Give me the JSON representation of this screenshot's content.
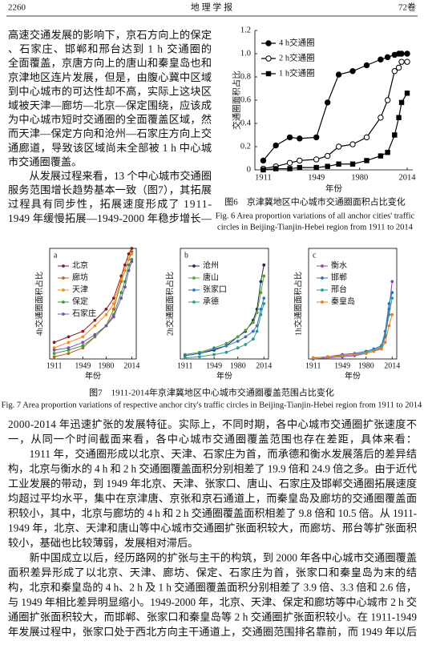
{
  "header": {
    "page": "2260",
    "journal": "地 理 学 报",
    "volume": "72卷"
  },
  "left_text": [
    "高速交通发展的影响下，京石方向上的保定",
    "、石家庄、邯郸和邢台达到 1 h 交通圈的",
    "全面覆盖，京唐方向上的唐山和秦皇岛也和",
    "京津地区连片发展，但是，由腹心冀中区域",
    "到中心城市的可达性却不高，实际上这块区",
    "域被天津—廊坊—北京—保定围绕，应该成",
    "为中心城市短时交通圈的全面覆盖区域，然",
    "而天津—保定方向和沧州—石家庄方向上交",
    "通廊道，导致该区域尚未全部被 1 h 中心城",
    "市交通圈覆盖。",
    "　　从发展过程来看，13 个中心城市交通圈",
    "服务范围增长趋势基本一致（图7），其拓展",
    "过程具有同步性，拓展速度形成了 1911-",
    "1949 年缓慢拓展—1949-2000 年稳步增长—"
  ],
  "figure6_caption": {
    "cn": "图6　京津冀地区中心城市交通圈面积占比变化",
    "en": [
      "Fig. 6  Area proportion variations of all anchor cities' traffic",
      "circles in Beijing-Tianjin-Hebei region from 1911 to 2014"
    ]
  },
  "figure7_caption": {
    "cn": "图7　1911-2014年京津冀地区中心城市交通圈覆盖范围占比变化",
    "en": "Fig. 7  Area proportion variations of respective anchor city's traffic circles in Beijing-Tianjin-Hebei region from 1911 to 2014"
  },
  "chart_data": [
    {
      "type": "line",
      "x_label": "年份",
      "y_label": "交通圈面积占比",
      "x": [
        1911,
        1920,
        1930,
        1937,
        1949,
        1957,
        1965,
        1975,
        1985,
        1995,
        2000,
        2005,
        2008,
        2010,
        2014
      ],
      "xlim": [
        1905,
        2018
      ],
      "xticks": [
        1911,
        1949,
        1980,
        2014
      ],
      "ylim": [
        0,
        1.2
      ],
      "yticks": [
        0,
        0.2,
        0.4,
        0.6,
        0.8,
        {
          "value": 1,
          "label": "1.0"
        },
        1.2
      ],
      "series": [
        {
          "name": "4 h交通圈",
          "color": "#000000",
          "marker": "circle",
          "values": [
            0.08,
            0.21,
            0.28,
            0.27,
            0.28,
            0.58,
            0.82,
            0.85,
            0.9,
            0.95,
            0.97,
            0.99,
            1.0,
            1.0,
            1.0
          ]
        },
        {
          "name": "2 h交通圈",
          "color": "#000000",
          "marker": "open-circle",
          "values": [
            0.01,
            0.03,
            0.06,
            0.08,
            0.09,
            0.12,
            0.2,
            0.22,
            0.28,
            0.45,
            0.6,
            0.85,
            0.88,
            0.93,
            0.93
          ]
        },
        {
          "name": "1 h交通圈",
          "color": "#000000",
          "marker": "square",
          "values": [
            0,
            0.01,
            0.01,
            0.02,
            0.02,
            0.03,
            0.05,
            0.05,
            0.08,
            0.12,
            0.15,
            0.3,
            0.45,
            0.58,
            0.66
          ]
        }
      ]
    },
    {
      "type": "line",
      "label": "a",
      "x_label": "年份",
      "y_label": "4h交通圈面积占比",
      "x": [
        1911,
        1930,
        1949,
        1965,
        1980,
        1990,
        2000,
        2005,
        2010,
        2014
      ],
      "xlim": [
        1905,
        2020
      ],
      "xticks": [
        1911,
        1949,
        1980,
        2014
      ],
      "ylim": [
        0,
        1
      ],
      "series": [
        {
          "name": "北京",
          "color": "#8b1a1a",
          "marker": "circle",
          "values": [
            0.15,
            0.2,
            0.25,
            0.35,
            0.45,
            0.55,
            0.75,
            0.85,
            0.95,
            1.0
          ]
        },
        {
          "name": "廊坊",
          "color": "#b5651d",
          "marker": "circle",
          "values": [
            0.02,
            0.05,
            0.1,
            0.2,
            0.3,
            0.45,
            0.7,
            0.8,
            0.9,
            0.97
          ]
        },
        {
          "name": "天津",
          "color": "#f28c28",
          "marker": "circle",
          "values": [
            0.1,
            0.15,
            0.2,
            0.3,
            0.4,
            0.5,
            0.72,
            0.8,
            0.9,
            0.95
          ]
        },
        {
          "name": "保定",
          "color": "#3a9a3a",
          "marker": "circle",
          "values": [
            0.05,
            0.08,
            0.12,
            0.2,
            0.3,
            0.4,
            0.6,
            0.7,
            0.85,
            0.9
          ]
        },
        {
          "name": "石家庄",
          "color": "#7b4fa8",
          "marker": "circle",
          "values": [
            0.08,
            0.1,
            0.15,
            0.22,
            0.3,
            0.38,
            0.55,
            0.65,
            0.8,
            0.88
          ]
        }
      ]
    },
    {
      "type": "line",
      "label": "b",
      "x_label": "年份",
      "y_label": "2h交通圈面积占比",
      "x": [
        1911,
        1930,
        1949,
        1965,
        1980,
        1990,
        2000,
        2005,
        2010,
        2014
      ],
      "xlim": [
        1905,
        2020
      ],
      "xticks": [
        1911,
        1949,
        1980,
        2014
      ],
      "ylim": [
        0,
        1
      ],
      "series": [
        {
          "name": "沧州",
          "color": "#1f2f4f",
          "marker": "circle",
          "values": [
            0.03,
            0.05,
            0.08,
            0.12,
            0.2,
            0.25,
            0.35,
            0.45,
            0.7,
            0.85
          ]
        },
        {
          "name": "唐山",
          "color": "#5a9e2f",
          "marker": "circle",
          "values": [
            0.04,
            0.06,
            0.1,
            0.14,
            0.2,
            0.26,
            0.33,
            0.42,
            0.6,
            0.75
          ]
        },
        {
          "name": "张家口",
          "color": "#2f74c0",
          "marker": "circle",
          "values": [
            0.03,
            0.05,
            0.09,
            0.12,
            0.16,
            0.2,
            0.25,
            0.3,
            0.45,
            0.55
          ]
        },
        {
          "name": "承德",
          "color": "#2a9d8f",
          "marker": "circle",
          "values": [
            0.01,
            0.02,
            0.04,
            0.06,
            0.1,
            0.13,
            0.18,
            0.25,
            0.4,
            0.5
          ]
        }
      ]
    },
    {
      "type": "line",
      "label": "c",
      "x_label": "年份",
      "y_label": "1h交通圈面积占比",
      "x": [
        1911,
        1930,
        1949,
        1965,
        1980,
        1990,
        2000,
        2005,
        2010,
        2014
      ],
      "xlim": [
        1905,
        2020
      ],
      "xticks": [
        1911,
        1949,
        1980,
        2014
      ],
      "ylim": [
        0,
        1
      ],
      "series": [
        {
          "name": "衡水",
          "color": "#8e44ad",
          "marker": "circle",
          "values": [
            0,
            0.01,
            0.02,
            0.03,
            0.05,
            0.07,
            0.1,
            0.2,
            0.45,
            0.7
          ]
        },
        {
          "name": "邯郸",
          "color": "#2e6fb7",
          "marker": "circle",
          "values": [
            0.01,
            0.02,
            0.04,
            0.05,
            0.07,
            0.09,
            0.12,
            0.25,
            0.5,
            0.6
          ]
        },
        {
          "name": "邢台",
          "color": "#1f9e9e",
          "marker": "circle",
          "values": [
            0.01,
            0.02,
            0.03,
            0.04,
            0.06,
            0.08,
            0.11,
            0.22,
            0.4,
            0.55
          ]
        },
        {
          "name": "秦皇岛",
          "color": "#e67e22",
          "marker": "circle",
          "values": [
            0.01,
            0.02,
            0.03,
            0.04,
            0.05,
            0.07,
            0.09,
            0.15,
            0.3,
            0.4
          ]
        }
      ]
    }
  ],
  "bottom_text": [
    "2000-2014 年迅速扩张的发展特征。实际上，不同时期，各中心城市交通圈扩张速度不",
    "一，从同一个时间截面来看，各中心城市交通圈覆盖范围也存在差距，具体来看：",
    "　　1911 年，交通圈形成以北京、天津、石家庄为首，而承德和衡水发展落后的差异结",
    "构，北京与衡水的 4 h 和 2 h 交通圈覆盖面积分别相差了 19.9 倍和 24.9 倍之多。由于近代",
    "工业发展的带动，到 1949 年北京、天津、张家口、唐山、石家庄及邯郸交通圈拓展速度",
    "均超过平均水平，集中在京津唐、京张和京石通道上，而秦皇岛及廊坊的交通圈覆盖面",
    "积较小，其中，北京与廊坊的 4 h 和 2 h 交通圈覆盖面积相差了 9.8 倍和 10.5 倍。从 1911-",
    "1949 年，北京、天津和唐山等中心城市交通圈扩张面积较大，而廊坊、邢台等扩张面积",
    "较小，基础也比较薄弱，发展相对滞后。",
    "　　新中国成立以后，经历路网的扩张与主干的构筑，到 2000 年各中心城市交通圈覆盖",
    "面积差异形成了以北京、天津、廊坊、保定、石家庄为首，张家口和秦皇岛为末的结",
    "构，北京和秦皇岛的 4 h、2 h 及 1 h 交通圈覆盖面积分别相差了 3.9 倍、3.3 倍和 2.6 倍，",
    "与 1949 年相比差异明显缩小。1949-2000 年，北京、天津、保定和廊坊等中心城市 2 h 交",
    "通圈扩张面积较大，而邯郸、张家口和秦皇岛等 2 h 交通圈扩张面积较小。在 1911-1949",
    "年发展过程中，张家口处于西北方向主干通道上，交通圈范围排名靠前，而 1949 年以后"
  ]
}
